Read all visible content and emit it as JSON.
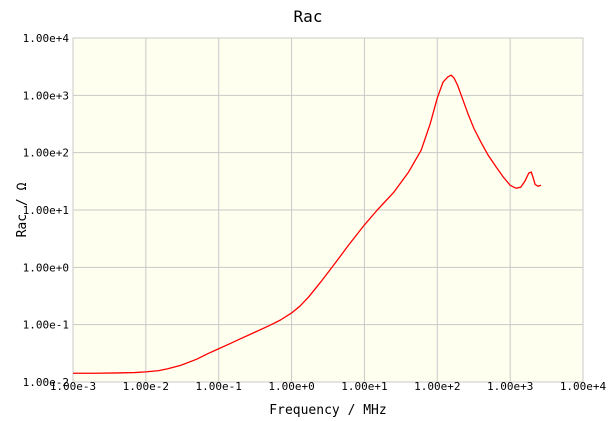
{
  "chart_data": {
    "type": "line",
    "title": "Rac",
    "xlabel": "Frequency / MHz",
    "ylabel": "Rac / Ω",
    "xscale": "log",
    "yscale": "log",
    "xlim": [
      0.001,
      10000
    ],
    "ylim": [
      0.01,
      10000
    ],
    "x_tick_values": [
      0.001,
      0.01,
      0.1,
      1,
      10,
      100,
      1000,
      10000
    ],
    "x_tick_labels": [
      "1.00e-3",
      "1.00e-2",
      "1.00e-1",
      "1.00e+0",
      "1.00e+1",
      "1.00e+2",
      "1.00e+3",
      "1.00e+4"
    ],
    "y_tick_values": [
      0.01,
      0.1,
      1,
      10,
      100,
      1000,
      10000
    ],
    "y_tick_labels": [
      "1.00e-2",
      "1.00e-1",
      "1.00e+0",
      "1.00e+1",
      "1.00e+2",
      "1.00e+3",
      "1.00e+4"
    ],
    "grid": true,
    "plot_background": "#fffff0",
    "grid_color": "#c8c8c8",
    "line_color": "#ff0000",
    "series": [
      {
        "x": [
          0.001,
          0.002,
          0.004,
          0.007,
          0.01,
          0.015,
          0.02,
          0.03,
          0.05,
          0.07,
          0.1,
          0.15,
          0.2,
          0.3,
          0.5,
          0.7,
          1,
          1.3,
          1.7,
          2.5,
          4,
          6,
          10,
          15,
          25,
          40,
          60,
          80,
          100,
          120,
          140,
          155,
          170,
          190,
          220,
          260,
          320,
          400,
          500,
          650,
          800,
          1000,
          1200,
          1400,
          1600,
          1800,
          1950,
          2050,
          2200,
          2400,
          2650
        ],
        "y": [
          0.0142,
          0.0142,
          0.0144,
          0.0146,
          0.015,
          0.0158,
          0.017,
          0.0195,
          0.025,
          0.031,
          0.038,
          0.048,
          0.057,
          0.072,
          0.097,
          0.12,
          0.16,
          0.21,
          0.3,
          0.55,
          1.2,
          2.4,
          5.5,
          10,
          20,
          45,
          110,
          320,
          900,
          1700,
          2100,
          2250,
          2000,
          1500,
          900,
          500,
          260,
          150,
          90,
          55,
          38,
          27,
          24,
          25,
          32,
          44,
          46,
          38,
          28,
          26,
          27
        ]
      }
    ]
  }
}
